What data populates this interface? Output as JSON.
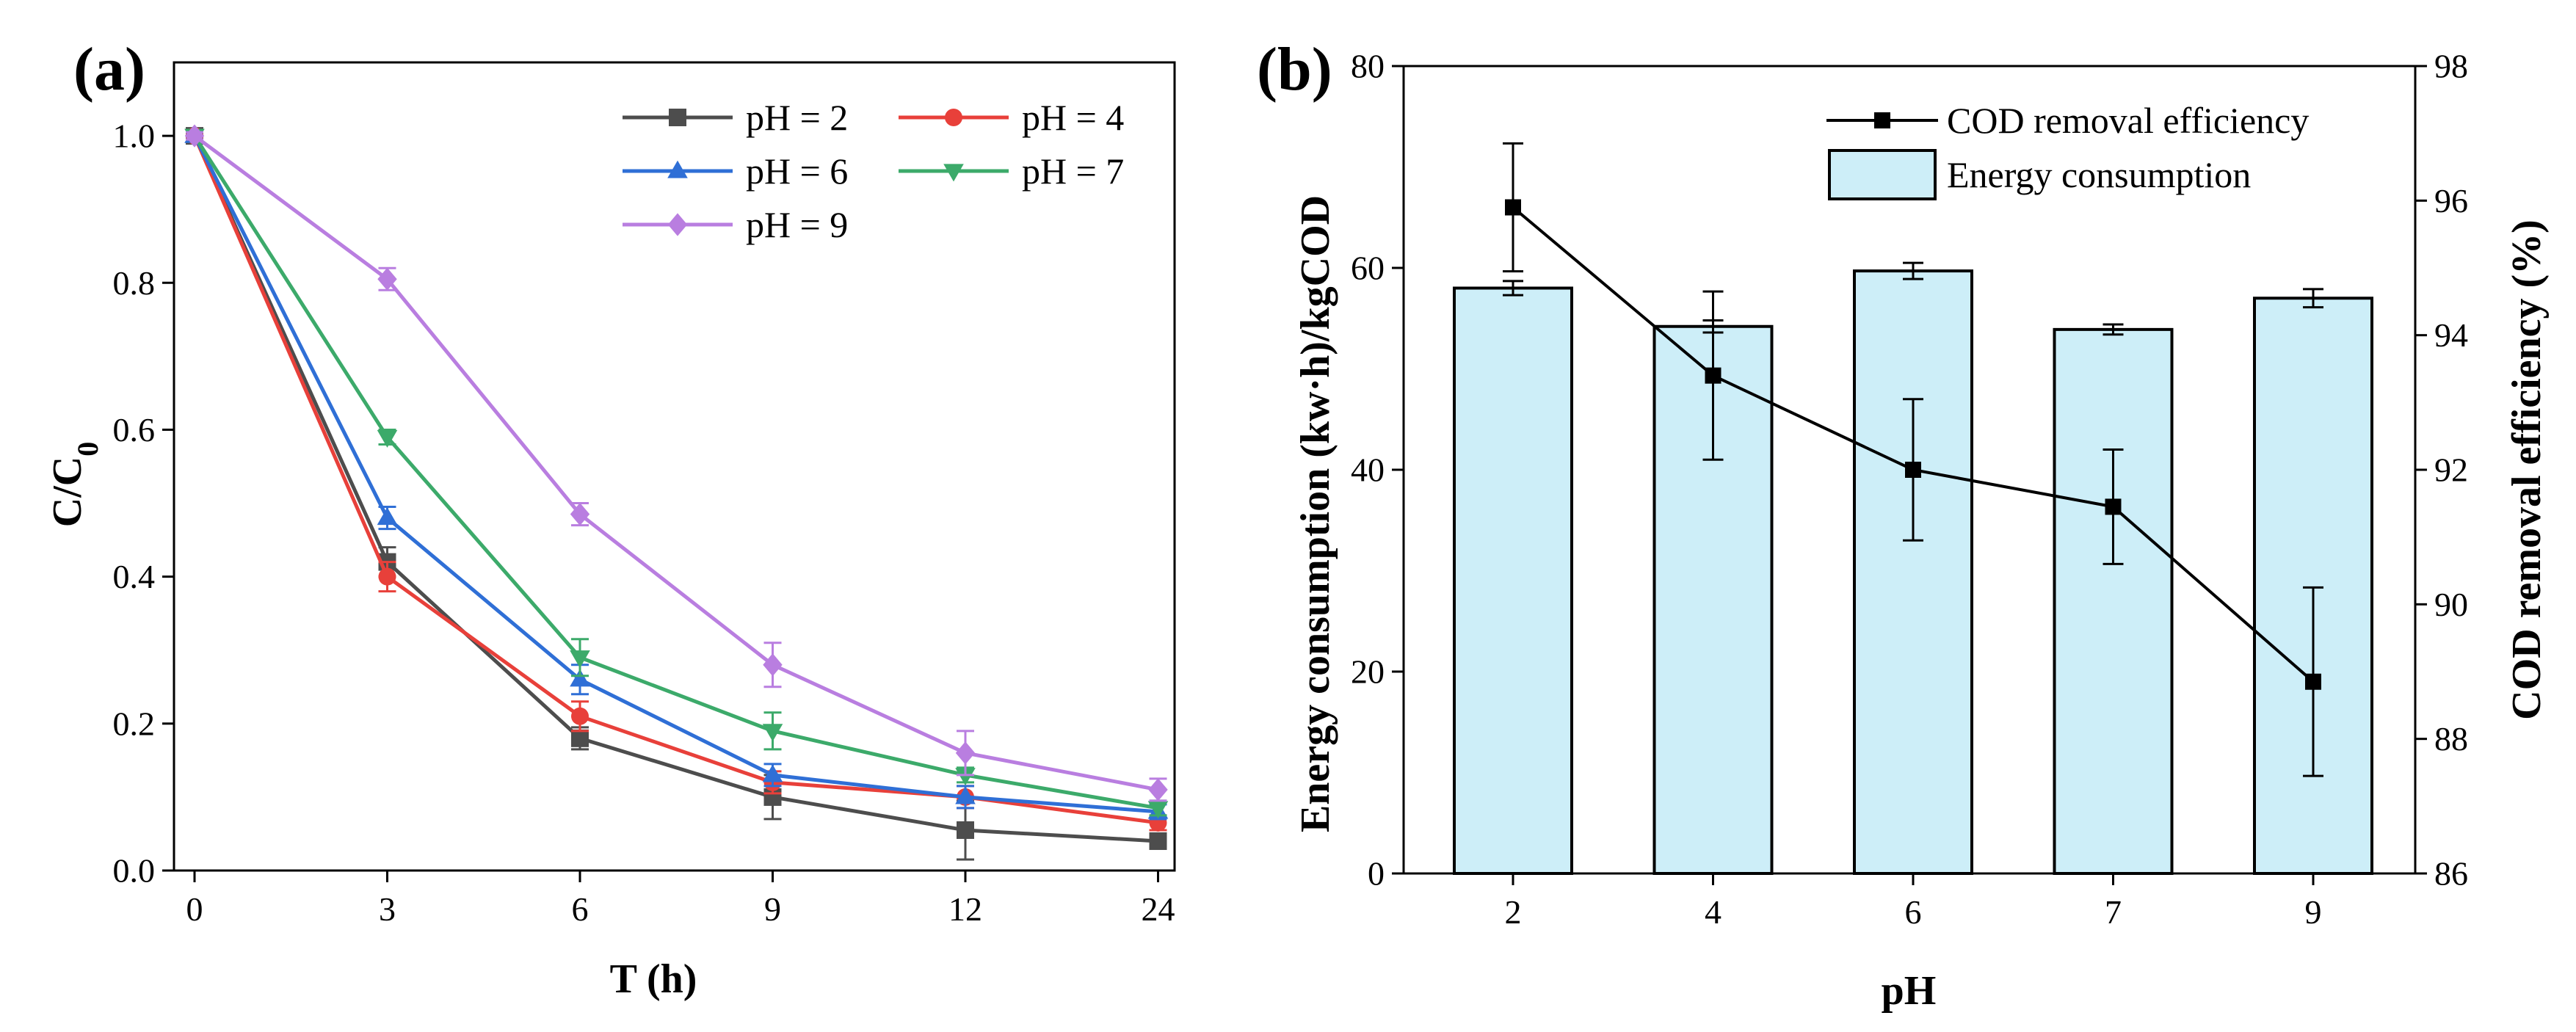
{
  "chart_data": [
    {
      "panel": "(a)",
      "type": "line",
      "xlabel": "T (h)",
      "ylabel": "C/C0",
      "ylabel_main": "C/C",
      "ylabel_sub": "0",
      "categories": [
        "0",
        "3",
        "6",
        "9",
        "12",
        "24"
      ],
      "ylim": [
        0,
        1.1
      ],
      "yticks": [
        "0.0",
        "0.2",
        "0.4",
        "0.6",
        "0.8",
        "1.0"
      ],
      "legend_position": "top-right",
      "grid": false,
      "series": [
        {
          "name": "pH = 2",
          "color": "#4d4d4d",
          "marker": "square",
          "values": [
            1.0,
            0.42,
            0.18,
            0.1,
            0.055,
            0.04
          ],
          "errors": [
            0.005,
            0.02,
            0.015,
            0.03,
            0.04,
            0.01
          ]
        },
        {
          "name": "pH = 4",
          "color": "#e8403a",
          "marker": "circle",
          "values": [
            1.0,
            0.4,
            0.21,
            0.12,
            0.1,
            0.065
          ],
          "errors": [
            0.005,
            0.02,
            0.02,
            0.015,
            0.015,
            0.01
          ]
        },
        {
          "name": "pH = 6",
          "color": "#2f6fd6",
          "marker": "triangle-up",
          "values": [
            1.0,
            0.48,
            0.26,
            0.13,
            0.1,
            0.08
          ],
          "errors": [
            0.005,
            0.015,
            0.02,
            0.015,
            0.015,
            0.01
          ]
        },
        {
          "name": "pH = 7",
          "color": "#3caa6a",
          "marker": "triangle-down",
          "values": [
            1.0,
            0.59,
            0.29,
            0.19,
            0.13,
            0.085
          ],
          "errors": [
            0.005,
            0.01,
            0.025,
            0.025,
            0.01,
            0.01
          ]
        },
        {
          "name": "pH = 9",
          "color": "#b97ee0",
          "marker": "diamond",
          "values": [
            1.0,
            0.805,
            0.485,
            0.28,
            0.16,
            0.11
          ],
          "errors": [
            0.005,
            0.015,
            0.015,
            0.03,
            0.03,
            0.015
          ]
        }
      ]
    },
    {
      "panel": "(b)",
      "type": "bar+line",
      "xlabel": "pH",
      "ylabel": "Energy consumption (kw·h)/kgCOD",
      "ylabel_right": "COD removal efficiency (%)",
      "categories": [
        "2",
        "4",
        "6",
        "7",
        "9"
      ],
      "ylim": [
        0,
        80
      ],
      "yticks": [
        "0",
        "20",
        "40",
        "60",
        "80"
      ],
      "ylim_right": [
        86,
        98
      ],
      "yticks_right": [
        "86",
        "88",
        "90",
        "92",
        "94",
        "96",
        "98"
      ],
      "legend_position": "top-right",
      "grid": false,
      "bar_color": "#cdeef8",
      "line_color": "#000000",
      "series": [
        {
          "name": "COD removal efficiency",
          "axis": "right",
          "type": "line",
          "values": [
            95.9,
            93.4,
            92.0,
            91.45,
            88.85
          ],
          "errors": [
            0.95,
            1.25,
            1.05,
            0.85,
            1.4
          ]
        },
        {
          "name": "Energy consumption",
          "axis": "left",
          "type": "bar",
          "values": [
            58.0,
            54.2,
            59.7,
            53.9,
            57.0
          ],
          "errors": [
            0.7,
            0.6,
            0.8,
            0.5,
            0.9
          ]
        }
      ]
    }
  ]
}
